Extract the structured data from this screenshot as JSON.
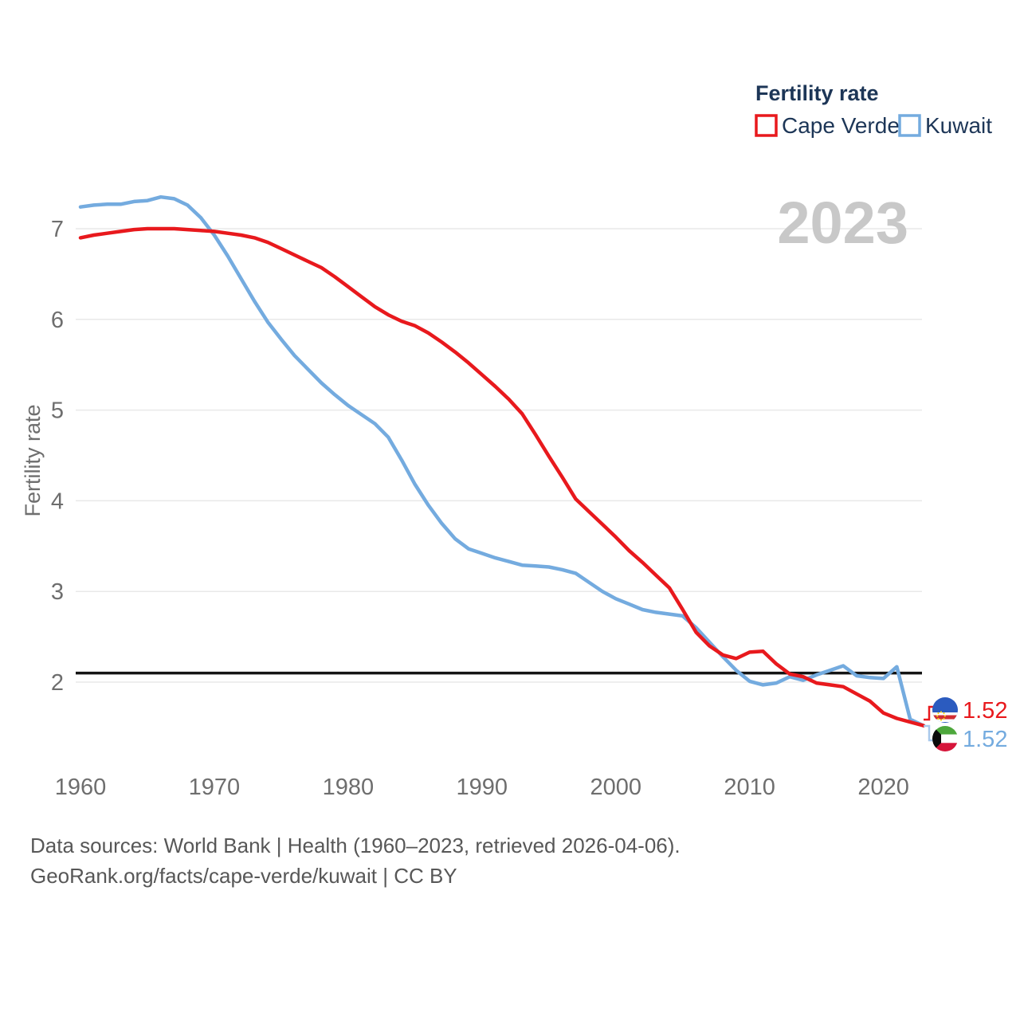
{
  "watermark": "2023",
  "legend": {
    "title": "Fertility rate",
    "series": [
      {
        "label": "Cape Verde",
        "color": "#e8191d"
      },
      {
        "label": "Kuwait",
        "color": "#74abdf"
      }
    ]
  },
  "y_axis": {
    "title": "Fertility rate",
    "ticks": [
      2,
      3,
      4,
      5,
      6,
      7
    ]
  },
  "x_axis": {
    "ticks": [
      1960,
      1970,
      1980,
      1990,
      2000,
      2010,
      2020
    ]
  },
  "reference_line": {
    "value": 2.1,
    "color": "#141414"
  },
  "end_labels": [
    {
      "series": "Cape Verde",
      "value": "1.52",
      "flag": "cape-verde-flag",
      "color": "#e8191d"
    },
    {
      "series": "Kuwait",
      "value": "1.52",
      "flag": "kuwait-flag",
      "color": "#74abdf"
    }
  ],
  "footer": {
    "line1": "Data sources: World Bank | Health (1960–2023, retrieved 2026-04-06).",
    "line2": "GeoRank.org/facts/cape-verde/kuwait | CC BY"
  },
  "chart_data": {
    "type": "line",
    "title": "Fertility rate",
    "xlabel": "",
    "ylabel": "Fertility rate",
    "ylim": [
      1.3,
      7.6
    ],
    "xlim": [
      1960,
      2023
    ],
    "grid": "horizontal",
    "legend_position": "top-right",
    "x": [
      1960,
      1961,
      1962,
      1963,
      1964,
      1965,
      1966,
      1967,
      1968,
      1969,
      1970,
      1971,
      1972,
      1973,
      1974,
      1975,
      1976,
      1977,
      1978,
      1979,
      1980,
      1981,
      1982,
      1983,
      1984,
      1985,
      1986,
      1987,
      1988,
      1989,
      1990,
      1991,
      1992,
      1993,
      1994,
      1995,
      1996,
      1997,
      1998,
      1999,
      2000,
      2001,
      2002,
      2003,
      2004,
      2005,
      2006,
      2007,
      2008,
      2009,
      2010,
      2011,
      2012,
      2013,
      2014,
      2015,
      2016,
      2017,
      2018,
      2019,
      2020,
      2021,
      2022,
      2023
    ],
    "series": [
      {
        "name": "Cape Verde",
        "color": "#e8191d",
        "values": [
          6.9,
          6.93,
          6.95,
          6.97,
          6.99,
          7.0,
          7.0,
          7.0,
          6.99,
          6.98,
          6.97,
          6.95,
          6.93,
          6.9,
          6.85,
          6.78,
          6.71,
          6.64,
          6.57,
          6.47,
          6.36,
          6.25,
          6.14,
          6.05,
          5.98,
          5.93,
          5.85,
          5.75,
          5.64,
          5.52,
          5.39,
          5.26,
          5.12,
          4.96,
          4.73,
          4.49,
          4.26,
          4.02,
          3.88,
          3.74,
          3.6,
          3.45,
          3.32,
          3.18,
          3.04,
          2.8,
          2.55,
          2.4,
          2.3,
          2.26,
          2.33,
          2.34,
          2.2,
          2.09,
          2.06,
          1.99,
          1.97,
          1.95,
          1.87,
          1.79,
          1.66,
          1.6,
          1.56,
          1.52
        ]
      },
      {
        "name": "Kuwait",
        "color": "#74abdf",
        "values": [
          7.24,
          7.26,
          7.27,
          7.27,
          7.3,
          7.31,
          7.35,
          7.33,
          7.26,
          7.12,
          6.93,
          6.7,
          6.45,
          6.2,
          5.97,
          5.78,
          5.6,
          5.45,
          5.3,
          5.17,
          5.05,
          4.95,
          4.85,
          4.7,
          4.45,
          4.18,
          3.95,
          3.75,
          3.58,
          3.47,
          3.42,
          3.37,
          3.33,
          3.29,
          3.28,
          3.27,
          3.24,
          3.2,
          3.1,
          3.0,
          2.92,
          2.86,
          2.8,
          2.77,
          2.75,
          2.73,
          2.6,
          2.44,
          2.28,
          2.13,
          2.01,
          1.97,
          1.99,
          2.06,
          2.02,
          2.08,
          2.13,
          2.18,
          2.07,
          2.05,
          2.04,
          2.17,
          1.59,
          1.52
        ]
      }
    ],
    "reference_line_value": 2.1
  }
}
